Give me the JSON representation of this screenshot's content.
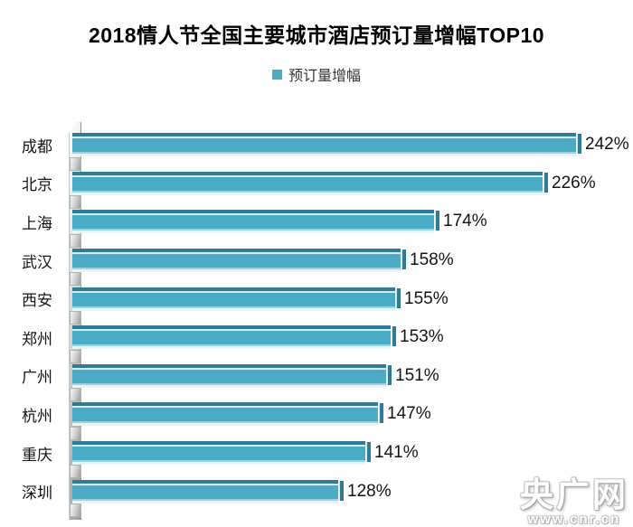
{
  "chart_data": {
    "type": "bar",
    "orientation": "horizontal",
    "title": "2018情人节全国主要城市酒店预订量增幅TOP10",
    "legend": [
      "预订量增幅"
    ],
    "legend_position": "top-center",
    "categories": [
      "成都",
      "北京",
      "上海",
      "武汉",
      "西安",
      "郑州",
      "广州",
      "杭州",
      "重庆",
      "深圳"
    ],
    "values": [
      242,
      226,
      174,
      158,
      155,
      153,
      151,
      147,
      141,
      128
    ],
    "value_labels": [
      "242%",
      "226%",
      "174%",
      "158%",
      "155%",
      "153%",
      "151%",
      "147%",
      "141%",
      "128%"
    ],
    "value_suffix": "%",
    "xlim": [
      0,
      260
    ],
    "grid": false,
    "bar_color": "#4BACC6",
    "bar_color_dark": "#2E7D95",
    "bar_style": "3d-bevel"
  },
  "watermark": {
    "brand": "央广网",
    "url": "www.cnr.cn"
  }
}
